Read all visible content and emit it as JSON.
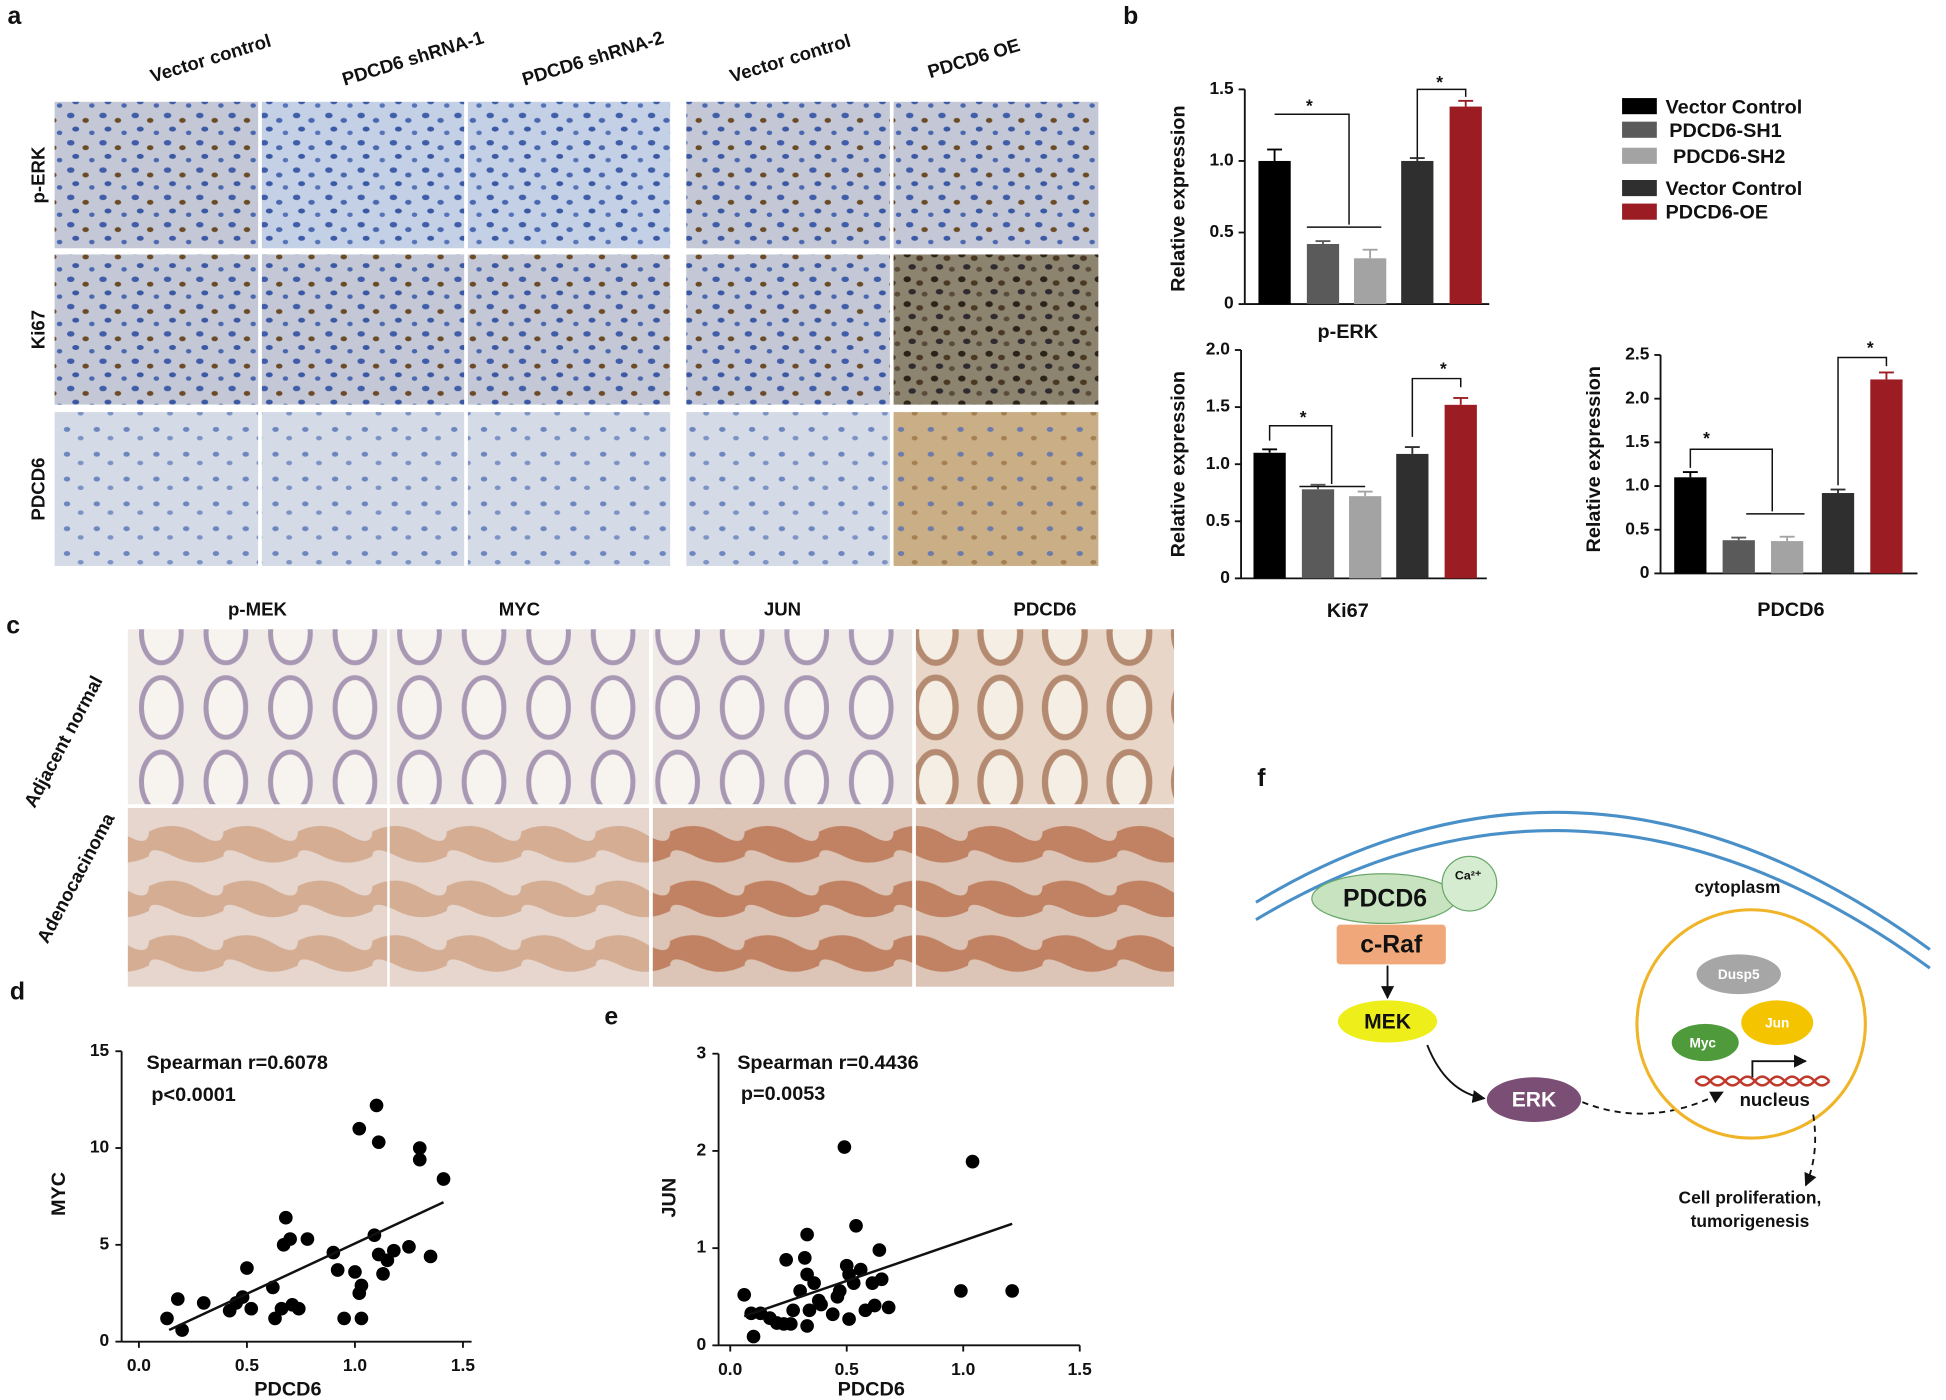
{
  "panel_labels": [
    "a",
    "b",
    "c",
    "d",
    "e",
    "f"
  ],
  "panel_a": {
    "columns": [
      "Vector control",
      "PDCD6 shRNA-1",
      "PDCD6 shRNA-2",
      "Vector control",
      "PDCD6 OE"
    ],
    "rows": [
      "p-ERK",
      "Ki67",
      "PDCD6"
    ]
  },
  "panel_b": {
    "legend": [
      {
        "name": "Vector Control",
        "color": "#000000"
      },
      {
        "name": "PDCD6-SH1",
        "color": "#5a5a5a"
      },
      {
        "name": "PDCD6-SH2",
        "color": "#a3a3a3"
      },
      {
        "name": "Vector Control",
        "color": "#2f2f2f"
      },
      {
        "name": "PDCD6-OE",
        "color": "#9b1c22"
      }
    ]
  },
  "panel_c": {
    "columns": [
      "p-MEK",
      "MYC",
      "JUN",
      "PDCD6"
    ],
    "rows": [
      "Adjacent normal",
      "Adenocacinoma"
    ]
  },
  "chart_data": [
    {
      "type": "bar",
      "xlabel": "p-ERK",
      "ylabel": "Relative expression",
      "values": [
        1.0,
        0.42,
        0.32,
        1.0,
        1.38
      ],
      "errors": [
        0.08,
        0.02,
        0.06,
        0.02,
        0.04
      ],
      "ylim": [
        0,
        1.5
      ],
      "yticks": [
        0,
        0.5,
        {
          "value": 1,
          "label": "1.0"
        },
        1.5
      ],
      "annotations": [
        "*",
        "*"
      ]
    },
    {
      "type": "bar",
      "xlabel": "Ki67",
      "ylabel": "Relative expression",
      "values": [
        1.1,
        0.78,
        0.72,
        1.09,
        1.52
      ],
      "errors": [
        0.03,
        0.04,
        0.04,
        0.06,
        0.06
      ],
      "ylim": [
        0,
        2
      ],
      "yticks": [
        0,
        0.5,
        {
          "value": 1,
          "label": "1.0"
        },
        1.5,
        {
          "value": 2,
          "label": "2.0"
        }
      ],
      "annotations": [
        "*",
        "*"
      ]
    },
    {
      "type": "bar",
      "xlabel": "PDCD6",
      "ylabel": "Relative expression",
      "values": [
        1.1,
        0.38,
        0.37,
        0.92,
        2.22
      ],
      "errors": [
        0.06,
        0.03,
        0.05,
        0.04,
        0.08
      ],
      "ylim": [
        0,
        2.5
      ],
      "yticks": [
        0,
        0.5,
        {
          "value": 1,
          "label": "1.0"
        },
        1.5,
        {
          "value": 2,
          "label": "2.0"
        },
        2.5
      ],
      "annotations": [
        "*",
        "*"
      ]
    },
    {
      "type": "scatter",
      "xlabel": "PDCD6",
      "ylabel": "MYC",
      "color": "#000000",
      "annotations": [
        "Spearman r=0.6078",
        "p<0.0001"
      ],
      "x": [
        0.13,
        0.18,
        0.2,
        0.3,
        0.42,
        0.45,
        0.48,
        0.5,
        0.52,
        0.62,
        0.63,
        0.66,
        0.67,
        0.68,
        0.7,
        0.71,
        0.74,
        0.78,
        0.9,
        0.92,
        0.95,
        1.0,
        1.02,
        1.03,
        1.03,
        1.02,
        1.09,
        1.1,
        1.11,
        1.11,
        1.13,
        1.15,
        1.18,
        1.25,
        1.3,
        1.3,
        1.35,
        1.41
      ],
      "y": [
        1.2,
        2.2,
        0.6,
        2.0,
        1.6,
        2.0,
        2.3,
        3.8,
        1.7,
        2.8,
        1.2,
        1.7,
        5.0,
        6.4,
        5.3,
        1.9,
        1.7,
        5.3,
        4.6,
        3.7,
        1.2,
        3.6,
        2.5,
        2.9,
        1.2,
        11.0,
        5.5,
        12.2,
        10.3,
        4.5,
        3.5,
        4.2,
        4.7,
        4.9,
        9.4,
        10.0,
        4.4,
        8.4
      ],
      "fit": {
        "x": [
          0.14,
          1.41
        ],
        "y": [
          0.6,
          7.2
        ]
      },
      "xlim": [
        -0.08,
        1.54
      ],
      "ylim": [
        0,
        15
      ],
      "xticks": [
        {
          "value": 0,
          "label": "0.0"
        },
        0.5,
        {
          "value": 1,
          "label": "1.0"
        },
        1.5
      ],
      "yticks": [
        0,
        5,
        10,
        15
      ]
    },
    {
      "type": "scatter",
      "xlabel": "PDCD6",
      "ylabel": "JUN",
      "color": "#000000",
      "annotations": [
        "Spearman r=0.4436",
        "p=0.0053"
      ],
      "x": [
        0.06,
        0.09,
        0.1,
        0.13,
        0.17,
        0.2,
        0.23,
        0.24,
        0.26,
        0.27,
        0.3,
        0.32,
        0.33,
        0.33,
        0.33,
        0.34,
        0.36,
        0.38,
        0.39,
        0.44,
        0.46,
        0.47,
        0.49,
        0.5,
        0.51,
        0.51,
        0.53,
        0.54,
        0.56,
        0.58,
        0.61,
        0.62,
        0.64,
        0.65,
        0.68,
        0.99,
        1.04,
        1.21
      ],
      "y": [
        0.52,
        0.33,
        0.09,
        0.33,
        0.28,
        0.23,
        0.22,
        0.88,
        0.22,
        0.36,
        0.56,
        0.9,
        0.2,
        0.73,
        1.14,
        0.36,
        0.64,
        0.46,
        0.42,
        0.32,
        0.5,
        0.56,
        2.04,
        0.82,
        0.73,
        0.27,
        0.64,
        1.23,
        0.78,
        0.36,
        0.64,
        0.41,
        0.98,
        0.68,
        0.39,
        0.56,
        1.89,
        0.56
      ],
      "fit": {
        "x": [
          0.06,
          1.21
        ],
        "y": [
          0.3,
          1.25
        ]
      },
      "xlim": [
        -0.05,
        1.5
      ],
      "ylim": [
        0,
        3
      ],
      "xticks": [
        {
          "value": 0,
          "label": "0.0"
        },
        0.5,
        {
          "value": 1,
          "label": "1.0"
        },
        1.5
      ],
      "yticks": [
        0,
        1,
        2,
        3
      ]
    }
  ],
  "diagram": {
    "nodes": {
      "pdcd6": "PDCD6",
      "ca": "Ca²⁺",
      "craf": "c-Raf",
      "mek": "MEK",
      "erk": "ERK",
      "dusp5": "Dusp5",
      "jun": "Jun",
      "myc": "Myc"
    },
    "cytoplasm": "cytoplasm",
    "nucleus": "nucleus",
    "outcome": [
      "Cell proliferation,",
      "tumorigenesis"
    ]
  }
}
